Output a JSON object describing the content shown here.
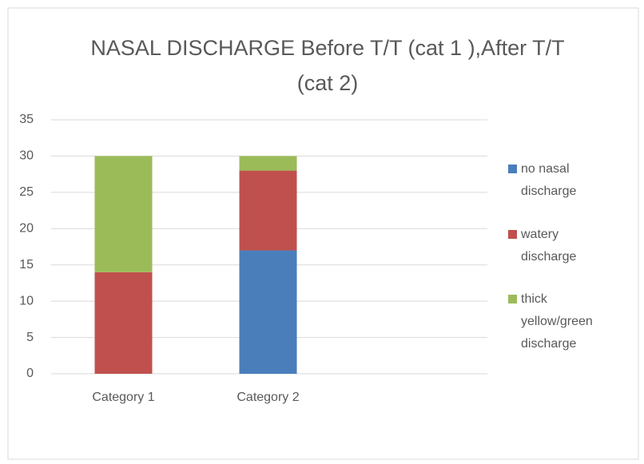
{
  "chart_data": {
    "type": "stacked_bar",
    "title": "NASAL DISCHARGE Before T/T (cat 1 ),After T/T (cat 2)",
    "categories": [
      "Category 1",
      "Category 2"
    ],
    "series": [
      {
        "name": "no nasal discharge",
        "color": "#4a7ebb",
        "values": [
          0,
          17
        ]
      },
      {
        "name": "watery discharge",
        "color": "#c0504d",
        "values": [
          14,
          11
        ]
      },
      {
        "name": "thick yellow/green discharge",
        "color": "#9bbb59",
        "values": [
          16,
          2
        ]
      }
    ],
    "ylim": [
      0,
      35
    ],
    "yticks": [
      0,
      5,
      10,
      15,
      20,
      25,
      30,
      35
    ],
    "grid": true,
    "legend": "right"
  }
}
